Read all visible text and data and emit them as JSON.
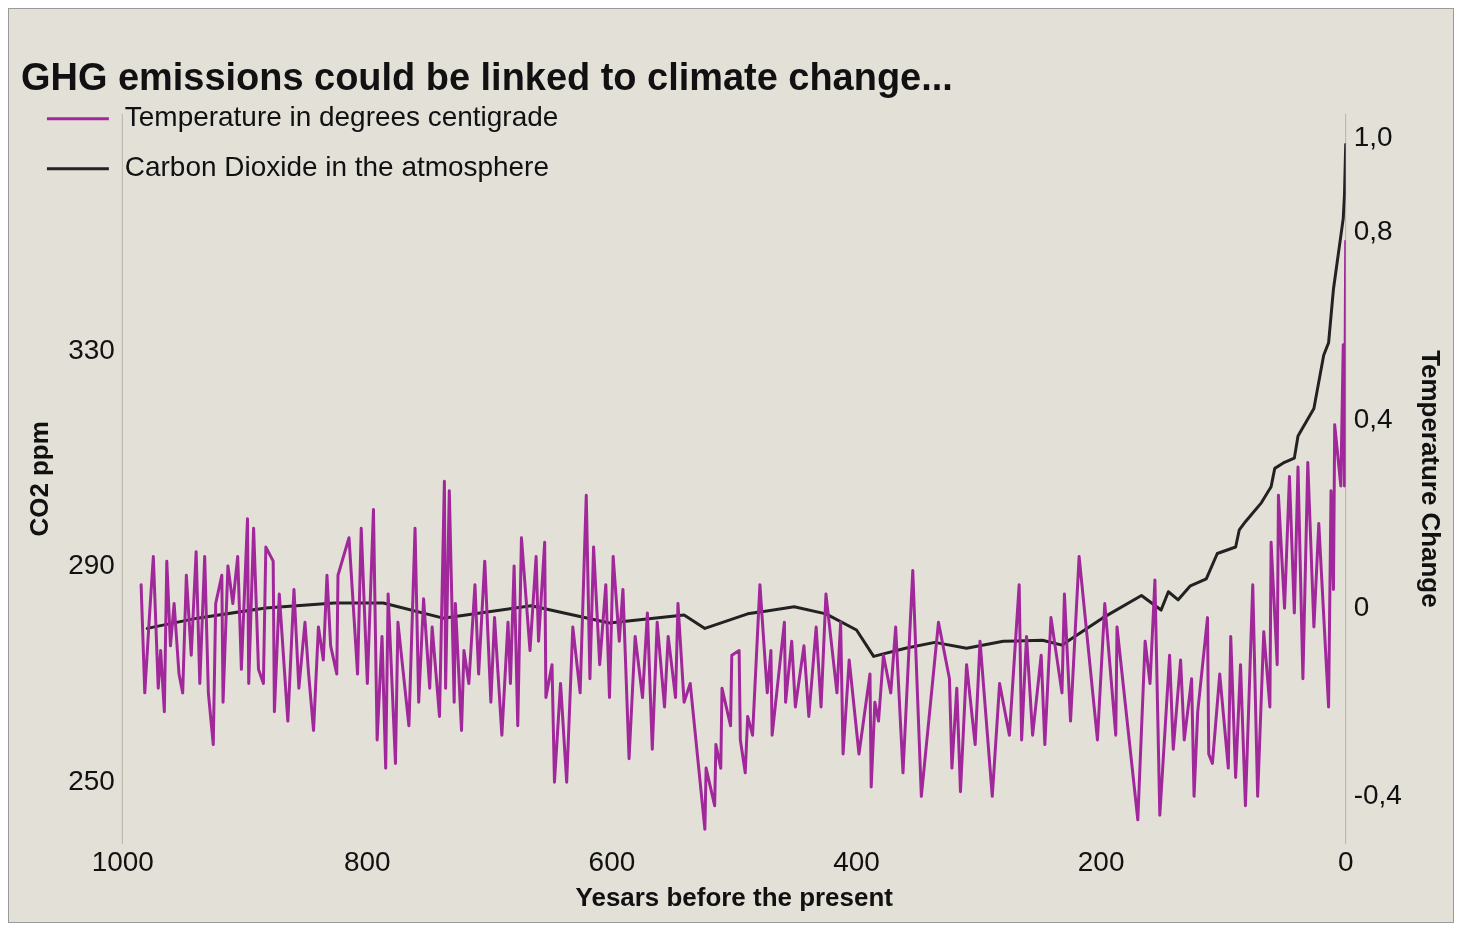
{
  "chart_data": {
    "type": "line",
    "title": "GHG emissions could be linked to climate change...",
    "xlabel": "Yesars before the present",
    "ylabel": "CO2 ppm",
    "y2label": "Temperature Change",
    "xlim": [
      1000,
      0
    ],
    "xticks": [
      1000,
      800,
      600,
      400,
      200,
      0
    ],
    "ylim": [
      238.6,
      373.9
    ],
    "yticks": [
      250,
      290,
      330
    ],
    "y2lim": [
      -0.5,
      1.05
    ],
    "y2ticks": [
      {
        "value": -0.4,
        "label": "-0,4"
      },
      {
        "value": 0,
        "label": "0"
      },
      {
        "value": 0.4,
        "label": "0,4"
      },
      {
        "value": 0.8,
        "label": "0,8"
      },
      {
        "value": 1.0,
        "label": "1,0"
      }
    ],
    "grid": false,
    "legend": "top left",
    "marker": "none",
    "line_style": "solid",
    "series": [
      {
        "name": "Temperature in degrees centigrade",
        "color": "#a0289a",
        "axis": "y2",
        "x": [
          985,
          982,
          978,
          975,
          971,
          969,
          966,
          964,
          961,
          958,
          954,
          951,
          948,
          944,
          940,
          937,
          933,
          930,
          926,
          924,
          919,
          918,
          914,
          910,
          906,
          903,
          898,
          897,
          893,
          889,
          885,
          883,
          877,
          876,
          872,
          865,
          860,
          856,
          851,
          848,
          844,
          840,
          836,
          833,
          830,
          825,
          824,
          815,
          808,
          805,
          800,
          795,
          792,
          788,
          785,
          783,
          777,
          775,
          766,
          761,
          758,
          754,
          749,
          747,
          741,
          737,
          736,
          733,
          729,
          728,
          723,
          721,
          717,
          712,
          709,
          704,
          699,
          696,
          690,
          685,
          683,
          680,
          677,
          674,
          667,
          662,
          660,
          655,
          654,
          649,
          647,
          642,
          637,
          632,
          626,
          621,
          618,
          615,
          610,
          605,
          602,
          599,
          594,
          591,
          586,
          581,
          575,
          571,
          567,
          563,
          557,
          554,
          548,
          546,
          541,
          536,
          524,
          523,
          516,
          515,
          511,
          510,
          503,
          502,
          496,
          495,
          491,
          489,
          485,
          479,
          473,
          470,
          469,
          459,
          458,
          453,
          450,
          443,
          439,
          433,
          429,
          425,
          416,
          413,
          411,
          406,
          398,
          389,
          388,
          385,
          382,
          378,
          372,
          368,
          362,
          354,
          347,
          333,
          324,
          322,
          318,
          315,
          310,
          303,
          299,
          289,
          283,
          275,
          267,
          265,
          261,
          256,
          249,
          246,
          241,
          232,
          230,
          225,
          218,
          203,
          197,
          188,
          187,
          170,
          164,
          160,
          156,
          152,
          144,
          141,
          135,
          132,
          126,
          124,
          121,
          113,
          112,
          109,
          103,
          96,
          94,
          90,
          86,
          82,
          76,
          72,
          67,
          62,
          61,
          56,
          55,
          50,
          46,
          42,
          39,
          35,
          31,
          26,
          22,
          14,
          12,
          10,
          9,
          4,
          2,
          1,
          0
        ],
        "values": [
          0.05,
          -0.18,
          -0.01,
          0.11,
          -0.17,
          -0.09,
          -0.22,
          0.1,
          -0.08,
          0.01,
          -0.14,
          -0.18,
          0.07,
          -0.1,
          0.12,
          -0.16,
          0.11,
          -0.18,
          -0.29,
          0.01,
          0.07,
          -0.2,
          0.09,
          0.01,
          0.11,
          -0.13,
          0.19,
          -0.16,
          0.17,
          -0.13,
          -0.16,
          0.13,
          0.1,
          -0.22,
          0.03,
          -0.24,
          0.04,
          -0.17,
          -0.03,
          -0.14,
          -0.26,
          -0.04,
          -0.11,
          0.07,
          -0.08,
          -0.14,
          0.07,
          0.15,
          -0.14,
          0.17,
          -0.16,
          0.21,
          -0.28,
          -0.06,
          -0.34,
          0.03,
          -0.33,
          -0.03,
          -0.25,
          0.17,
          -0.2,
          0.02,
          -0.17,
          -0.04,
          -0.23,
          0.27,
          -0.17,
          0.25,
          -0.2,
          0.01,
          -0.26,
          -0.09,
          -0.16,
          0.05,
          -0.14,
          0.1,
          -0.2,
          -0.02,
          -0.27,
          -0.03,
          -0.16,
          0.09,
          -0.25,
          0.15,
          -0.09,
          0.11,
          -0.07,
          0.14,
          -0.19,
          -0.12,
          -0.37,
          -0.16,
          -0.37,
          -0.04,
          -0.18,
          0.24,
          -0.15,
          0.13,
          -0.12,
          0.05,
          -0.19,
          0.11,
          -0.07,
          0.04,
          -0.32,
          -0.06,
          -0.19,
          -0.01,
          -0.3,
          -0.03,
          -0.21,
          -0.06,
          -0.19,
          0.01,
          -0.2,
          -0.16,
          -0.47,
          -0.34,
          -0.42,
          -0.29,
          -0.34,
          -0.17,
          -0.25,
          -0.1,
          -0.09,
          -0.28,
          -0.35,
          -0.23,
          -0.27,
          0.05,
          -0.18,
          -0.09,
          -0.27,
          -0.03,
          -0.2,
          -0.07,
          -0.21,
          -0.08,
          -0.23,
          -0.04,
          -0.21,
          0.03,
          -0.18,
          -0.03,
          -0.31,
          -0.11,
          -0.31,
          -0.14,
          -0.38,
          -0.2,
          -0.24,
          -0.1,
          -0.18,
          -0.04,
          -0.35,
          0.08,
          -0.4,
          -0.03,
          -0.15,
          -0.34,
          -0.17,
          -0.39,
          -0.12,
          -0.29,
          -0.07,
          -0.4,
          -0.16,
          -0.27,
          0.05,
          -0.28,
          -0.06,
          -0.27,
          -0.1,
          -0.29,
          -0.02,
          -0.18,
          0.03,
          -0.24,
          0.11,
          -0.28,
          0.01,
          -0.27,
          -0.04,
          -0.45,
          -0.07,
          -0.16,
          0.06,
          -0.44,
          -0.1,
          -0.3,
          -0.11,
          -0.28,
          -0.15,
          -0.4,
          -0.22,
          -0.02,
          -0.31,
          -0.33,
          -0.14,
          -0.34,
          -0.06,
          -0.36,
          -0.12,
          -0.42,
          0.05,
          -0.4,
          -0.05,
          -0.21,
          0.14,
          -0.12,
          0.24,
          0.0,
          0.28,
          -0.01,
          0.3,
          -0.15,
          0.31,
          -0.04,
          0.18,
          -0.21,
          0.25,
          0.04,
          0.39,
          0.26,
          0.56,
          0.26,
          0.78
        ]
      },
      {
        "name": "Carbon Dioxide in the atmosphere",
        "color": "#222222",
        "x": [
          980,
          939,
          883,
          827,
          787,
          738,
          666,
          602,
          541,
          524,
          489,
          451,
          425,
          400,
          386,
          360,
          336,
          310,
          280,
          248,
          232,
          199,
          167,
          151,
          145,
          137,
          127,
          114,
          105,
          90,
          87,
          82,
          69,
          61,
          58,
          51,
          42,
          39,
          26,
          18,
          14,
          10,
          2,
          1,
          0
        ],
        "values": [
          278.5,
          280.4,
          282.3,
          283.2,
          283.2,
          280.4,
          282.7,
          279.5,
          281.0,
          278.5,
          281.2,
          282.5,
          281.2,
          278.2,
          273.3,
          274.8,
          275.9,
          274.8,
          276.1,
          276.3,
          275.4,
          280.4,
          284.6,
          281.9,
          285.3,
          283.8,
          286.4,
          287.7,
          292.4,
          293.6,
          296.8,
          298.3,
          301.8,
          304.8,
          308.2,
          309.2,
          310.1,
          314.2,
          319.3,
          329.2,
          331.5,
          341.5,
          354.6,
          358.9,
          368.3
        ]
      }
    ]
  }
}
